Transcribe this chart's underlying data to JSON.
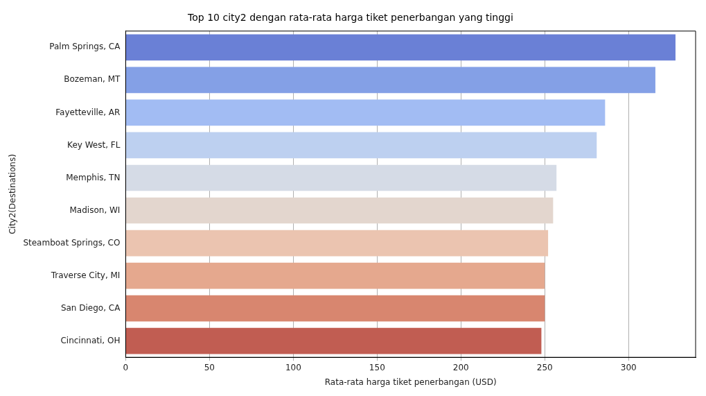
{
  "chart_data": {
    "type": "bar",
    "orientation": "horizontal",
    "title": "Top 10 city2 dengan rata-rata harga tiket penerbangan yang tinggi",
    "xlabel": "Rata-rata harga tiket penerbangan (USD)",
    "ylabel": "City2(Destinations)",
    "categories": [
      "Palm Springs, CA",
      "Bozeman, MT",
      "Fayetteville, AR",
      "Key West, FL",
      "Memphis, TN",
      "Madison, WI",
      "Steamboat Springs, CO",
      "Traverse City, MI",
      "San Diego, CA",
      "Cincinnati, OH"
    ],
    "values": [
      328,
      316,
      286,
      281,
      257,
      255,
      252,
      250,
      250,
      248
    ],
    "colors": [
      "#6a80d6",
      "#84a0e6",
      "#a2bcf3",
      "#bdd0f0",
      "#d5dbe6",
      "#e3d6ce",
      "#ebc4b0",
      "#e5a88e",
      "#d8866f",
      "#c15d52"
    ],
    "xlim": [
      0,
      340
    ],
    "xticks": [
      0,
      50,
      100,
      150,
      200,
      250,
      300
    ],
    "grid": "x",
    "legend": false
  }
}
